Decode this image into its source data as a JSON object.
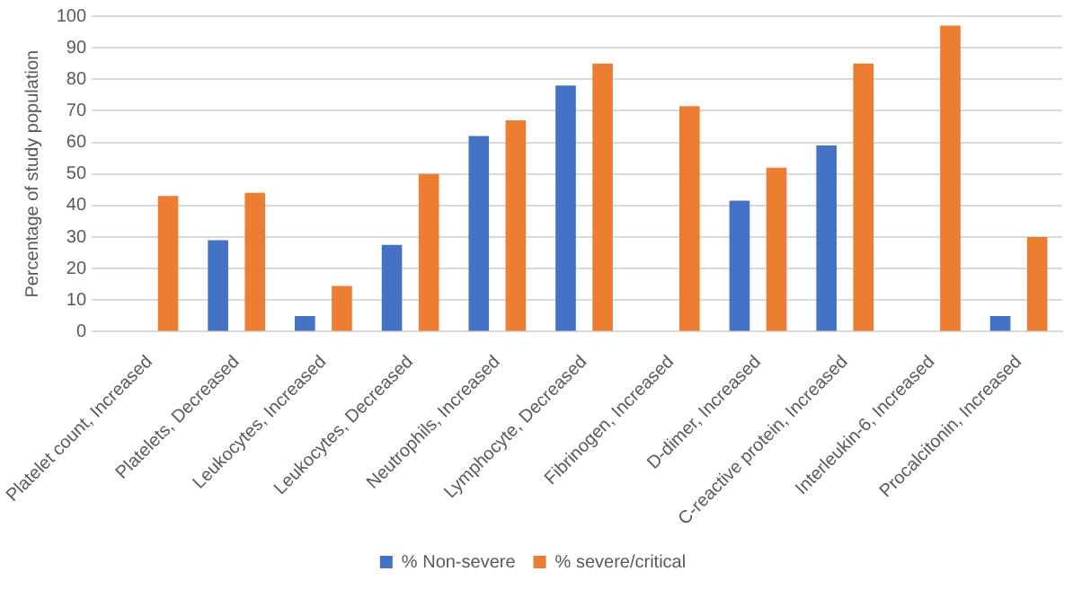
{
  "chart_data": {
    "type": "bar",
    "ylabel": "Percentage of study population",
    "categories": [
      "Platelet count, Increased",
      "Platelets, Decreased",
      "Leukocytes, Increased",
      "Leukocytes, Decreased",
      "Neutrophils, Increased",
      "Lymphocyte, Decreased",
      "Fibrinogen, Increased",
      "D-dimer, Increased",
      "C-reactive protein, Increased",
      "Interleukin-6, Increased",
      "Procalcitonin, Increased"
    ],
    "series": [
      {
        "name": "% Non-severe",
        "color": "#4472c4",
        "values": [
          null,
          29,
          5,
          27.5,
          62,
          78,
          null,
          41.5,
          59,
          null,
          5
        ]
      },
      {
        "name": "% severe/critical",
        "color": "#ed7d31",
        "values": [
          43,
          44,
          14.5,
          50,
          67,
          85,
          71.5,
          52,
          85,
          97,
          30
        ]
      }
    ],
    "ylim": [
      0,
      100
    ],
    "yticks": [
      0,
      10,
      20,
      30,
      40,
      50,
      60,
      70,
      80,
      90,
      100
    ],
    "grid": "y",
    "legend": "bottom"
  }
}
